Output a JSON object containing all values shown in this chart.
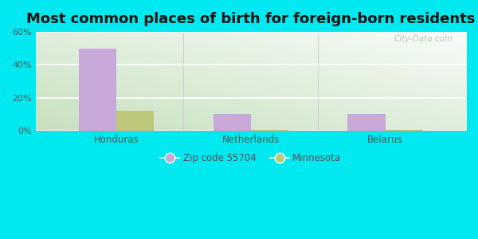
{
  "title": "Most common places of birth for foreign-born residents",
  "categories": [
    "Honduras",
    "Netherlands",
    "Belarus"
  ],
  "series": [
    {
      "name": "Zip code 55704",
      "color": "#c8a8d8",
      "values": [
        50.0,
        10.0,
        10.0
      ]
    },
    {
      "name": "Minnesota",
      "color": "#bdc87a",
      "values": [
        12.0,
        0.2,
        0.5
      ]
    }
  ],
  "ylim": [
    0,
    60
  ],
  "yticks": [
    0,
    20,
    40,
    60
  ],
  "ytick_labels": [
    "0%",
    "20%",
    "40%",
    "60%"
  ],
  "bar_width": 0.28,
  "background_outer": "#00e8f0",
  "title_fontsize": 13,
  "watermark": "City-Data.com"
}
